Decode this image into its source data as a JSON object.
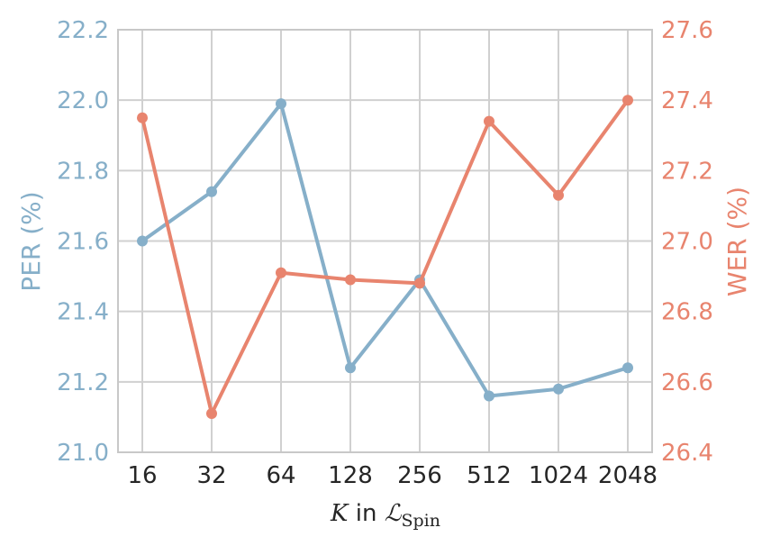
{
  "chart_data": {
    "type": "line",
    "categories": [
      "16",
      "32",
      "64",
      "128",
      "256",
      "512",
      "1024",
      "2048"
    ],
    "x_label": {
      "var": "K",
      "word": "in",
      "script": "ℒ",
      "sub": "Spin"
    },
    "series": [
      {
        "name": "",
        "axis": "left",
        "values": [
          21.6,
          21.74,
          21.99,
          21.24,
          21.49,
          21.16,
          21.18,
          21.24
        ],
        "color": "#86afc9"
      },
      {
        "name": "",
        "axis": "right",
        "values": [
          27.35,
          26.51,
          26.91,
          26.89,
          26.88,
          27.34,
          27.13,
          27.4
        ],
        "color": "#e8846e"
      }
    ],
    "y_left": {
      "label": "PER (%)",
      "lim": [
        21.0,
        22.2
      ],
      "ticks": [
        "21.0",
        "21.2",
        "21.4",
        "21.6",
        "21.8",
        "22.0",
        "22.2"
      ],
      "color": "#86afc9"
    },
    "y_right": {
      "label": "WER (%)",
      "lim": [
        26.4,
        27.6
      ],
      "ticks": [
        "26.4",
        "26.6",
        "26.8",
        "27.0",
        "27.2",
        "27.4",
        "27.6"
      ],
      "color": "#e8846e"
    },
    "grid": true
  }
}
